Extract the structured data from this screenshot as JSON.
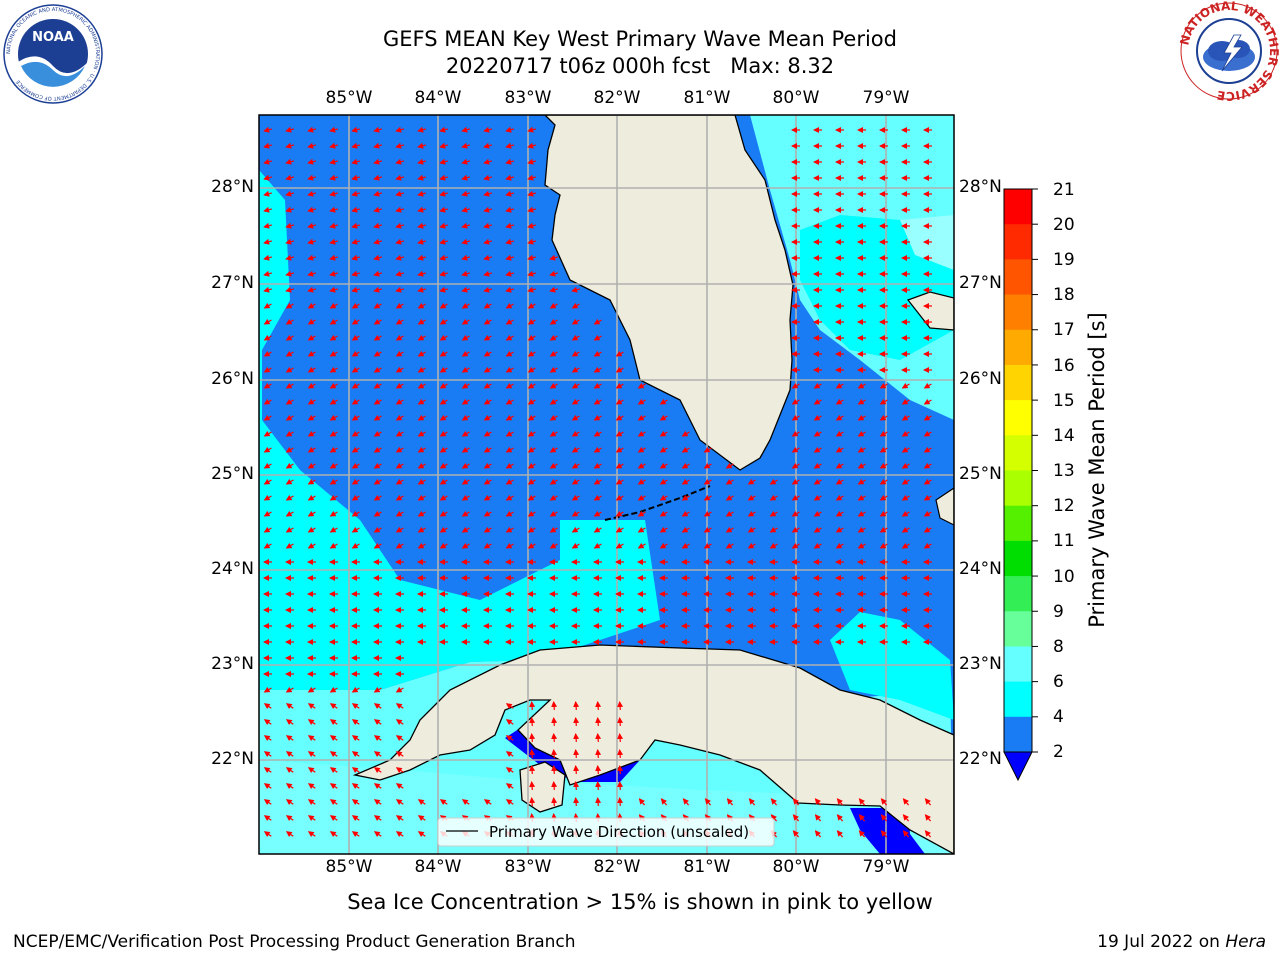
{
  "title": {
    "line1": "GEFS MEAN Key West Primary Wave Mean Period",
    "line2": "20220717 t06z 000h fcst   Max: 8.32"
  },
  "logos": {
    "left": "NOAA",
    "left_ring_text": "NATIONAL OCEANIC AND ATMOSPHERIC ADMINISTRATION · U.S. DEPARTMENT OF COMMERCE",
    "right_ring_text": "NATIONAL WEATHER SERVICE"
  },
  "map": {
    "lon_labels": [
      "85°W",
      "84°W",
      "83°W",
      "82°W",
      "81°W",
      "80°W",
      "79°W"
    ],
    "lat_labels": [
      "28°N",
      "27°N",
      "26°N",
      "25°N",
      "24°N",
      "23°N",
      "22°N"
    ],
    "legend_label": "Primary Wave Direction (unscaled)",
    "colors": {
      "land": "#eeecdc",
      "coast": "#000000",
      "grid": "#b0b0b0",
      "arrow": "#ff0000",
      "c2_4": "#1a7cf5",
      "c4_6": "#00ffff",
      "c6_8": "#66ffff",
      "c8_9": "#99ffff",
      "deep": "#0000ff"
    }
  },
  "colorbar": {
    "label": "Primary Wave Mean Period [s]",
    "ticks": [
      "21",
      "20",
      "19",
      "18",
      "17",
      "16",
      "15",
      "14",
      "13",
      "12",
      "11",
      "10",
      "9",
      "8",
      "6",
      "4",
      "2"
    ],
    "colors": [
      "#ff0000",
      "#ff2a00",
      "#ff5500",
      "#ff7f00",
      "#ffaa00",
      "#ffd400",
      "#ffff00",
      "#d4ff00",
      "#aaff00",
      "#55ef00",
      "#00dd00",
      "#33ee55",
      "#66ff99",
      "#99ffff",
      "#66ffff",
      "#00ffff",
      "#1a7cf5"
    ],
    "extend_color": "#0000ff"
  },
  "footer": {
    "note": "Sea Ice Concentration > 15% is shown in pink to yellow",
    "left": "NCEP/EMC/Verification Post Processing Product Generation Branch",
    "right_date": "19 Jul 2022 on ",
    "right_host": "Hera"
  }
}
